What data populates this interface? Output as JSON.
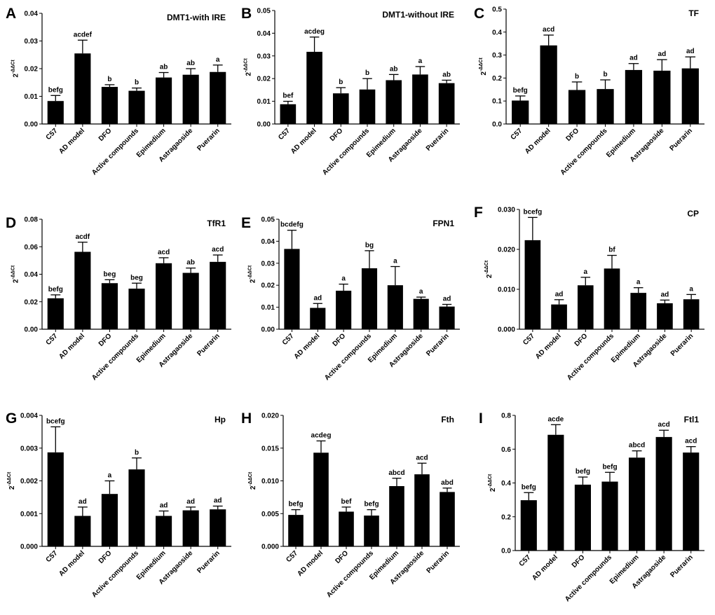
{
  "chart_data": [
    {
      "type": "bar",
      "panel": "A",
      "title": "DMT1-with IRE",
      "ylabel": {
        "base": "2",
        "sup": "-ΔΔCt"
      },
      "ylim": [
        0,
        0.04
      ],
      "yticks": [
        "0.00",
        "0.01",
        "0.02",
        "0.03",
        "0.04"
      ],
      "categories": [
        "C57",
        "AD model",
        "DFO",
        "Active compounds",
        "Epimedium",
        "Astragaoside",
        "Puerarin"
      ],
      "values": [
        0.0083,
        0.0255,
        0.0134,
        0.012,
        0.0168,
        0.0178,
        0.0188
      ],
      "errors": [
        0.002,
        0.0048,
        0.0008,
        0.001,
        0.0018,
        0.0022,
        0.0025
      ],
      "significance": [
        "befg",
        "acdef",
        "b",
        "b",
        "ab",
        "ab",
        "a"
      ]
    },
    {
      "type": "bar",
      "panel": "B",
      "title": "DMT1-without IRE",
      "ylabel": {
        "base": "2",
        "sup": "-ΔΔCt"
      },
      "ylim": [
        0,
        0.05
      ],
      "yticks": [
        "0.00",
        "0.01",
        "0.02",
        "0.03",
        "0.04",
        "0.05"
      ],
      "categories": [
        "C57",
        "AD model",
        "DFO",
        "Active compounds",
        "Epimedium",
        "Astragaoside",
        "Puerarin"
      ],
      "values": [
        0.0087,
        0.0318,
        0.0135,
        0.0152,
        0.0193,
        0.0218,
        0.018
      ],
      "errors": [
        0.0013,
        0.0065,
        0.0025,
        0.0048,
        0.0025,
        0.0035,
        0.0013
      ],
      "significance": [
        "bef",
        "acdeg",
        "b",
        "b",
        "ab",
        "a",
        "ab"
      ]
    },
    {
      "type": "bar",
      "panel": "C",
      "title": "TF",
      "ylabel": {
        "base": "2",
        "sup": "-ΔΔCt"
      },
      "ylim": [
        0,
        0.5
      ],
      "yticks": [
        "0.0",
        "0.1",
        "0.2",
        "0.3",
        "0.4",
        "0.5"
      ],
      "categories": [
        "C57",
        "AD model",
        "DFO",
        "Active compounds",
        "Epimedium",
        "Astragaoside",
        "Puerarin"
      ],
      "values": [
        0.102,
        0.342,
        0.148,
        0.152,
        0.235,
        0.232,
        0.242
      ],
      "errors": [
        0.02,
        0.045,
        0.035,
        0.04,
        0.028,
        0.048,
        0.05
      ],
      "significance": [
        "befg",
        "acd",
        "b",
        "b",
        "ad",
        "ad",
        "ad"
      ]
    },
    {
      "type": "bar",
      "panel": "D",
      "title": "TfR1",
      "ylabel": {
        "base": "2",
        "sup": "-ΔΔCt"
      },
      "ylim": [
        0,
        0.08
      ],
      "yticks": [
        "0.00",
        "0.02",
        "0.04",
        "0.06",
        "0.08"
      ],
      "categories": [
        "C57",
        "AD model",
        "DFO",
        "Active compounds",
        "Epimedium",
        "Astragaoside",
        "Puerarin"
      ],
      "values": [
        0.0225,
        0.0563,
        0.0335,
        0.0295,
        0.048,
        0.041,
        0.049
      ],
      "errors": [
        0.0025,
        0.007,
        0.0025,
        0.004,
        0.004,
        0.0035,
        0.005
      ],
      "significance": [
        "befg",
        "acdf",
        "beg",
        "beg",
        "acd",
        "ab",
        "acd"
      ]
    },
    {
      "type": "bar",
      "panel": "E",
      "title": "FPN1",
      "ylabel": {
        "base": "2",
        "sup": "-ΔΔCt"
      },
      "ylim": [
        0,
        0.05
      ],
      "yticks": [
        "0.00",
        "0.01",
        "0.02",
        "0.03",
        "0.04",
        "0.05"
      ],
      "categories": [
        "C57",
        "AD model",
        "DFO",
        "Active compounds",
        "Epimedium",
        "Astragaoside",
        "Puerarin"
      ],
      "values": [
        0.0365,
        0.0097,
        0.0175,
        0.0277,
        0.02,
        0.0138,
        0.0103
      ],
      "errors": [
        0.0085,
        0.002,
        0.003,
        0.008,
        0.0085,
        0.0008,
        0.001
      ],
      "significance": [
        "bcdefg",
        "ad",
        "a",
        "bg",
        "a",
        "a",
        "ad"
      ]
    },
    {
      "type": "bar",
      "panel": "F",
      "title": "CP",
      "ylabel": {
        "base": "2",
        "sup": "-ΔΔCt"
      },
      "ylim": [
        0,
        0.03
      ],
      "yticks": [
        "0.000",
        "0.010",
        "0.020",
        "0.030"
      ],
      "categories": [
        "C57",
        "AD model",
        "DFO",
        "Active compounds",
        "Epimedium",
        "Astragaoside",
        "Puerarin"
      ],
      "values": [
        0.0223,
        0.0062,
        0.011,
        0.0152,
        0.0091,
        0.0065,
        0.0075
      ],
      "errors": [
        0.0057,
        0.0012,
        0.002,
        0.0033,
        0.0013,
        0.0008,
        0.0012
      ],
      "significance": [
        "bcefg",
        "ad",
        "a",
        "bf",
        "a",
        "ad",
        "a"
      ]
    },
    {
      "type": "bar",
      "panel": "G",
      "title": "Hp",
      "ylabel": {
        "base": "2",
        "sup": "-ΔΔCt"
      },
      "ylim": [
        0,
        0.004
      ],
      "yticks": [
        "0.000",
        "0.001",
        "0.002",
        "0.003",
        "0.004"
      ],
      "categories": [
        "C57",
        "AD model",
        "DFO",
        "Active compounds",
        "Epimedium",
        "Astragaoside",
        "Puerarin"
      ],
      "values": [
        0.00287,
        0.00093,
        0.0016,
        0.00235,
        0.00093,
        0.0011,
        0.00113
      ],
      "errors": [
        0.00078,
        0.00027,
        0.0004,
        0.00035,
        0.00015,
        0.0001,
        0.0001
      ],
      "significance": [
        "bcefg",
        "ad",
        "a",
        "b",
        "ad",
        "ad",
        "ad"
      ]
    },
    {
      "type": "bar",
      "panel": "H",
      "title": "Fth",
      "ylabel": {
        "base": "2",
        "sup": "-ΔΔCt"
      },
      "ylim": [
        0,
        0.02
      ],
      "yticks": [
        "0.000",
        "0.005",
        "0.010",
        "0.015",
        "0.020"
      ],
      "categories": [
        "C57",
        "AD model",
        "DFO",
        "Active compounds",
        "Epimedium",
        "Astragaoside",
        "Puerarin"
      ],
      "values": [
        0.0048,
        0.0143,
        0.0053,
        0.0047,
        0.0092,
        0.011,
        0.0083
      ],
      "errors": [
        0.0008,
        0.0018,
        0.0007,
        0.0009,
        0.0012,
        0.0017,
        0.0006
      ],
      "significance": [
        "befg",
        "acdeg",
        "bef",
        "befg",
        "abcd",
        "acd",
        "abd"
      ]
    },
    {
      "type": "bar",
      "panel": "I",
      "title": "Ftl1",
      "ylabel": {
        "base": "2",
        "sup": "-ΔΔCt"
      },
      "ylim": [
        0,
        0.8
      ],
      "yticks": [
        "0.0",
        "0.2",
        "0.4",
        "0.6",
        "0.8"
      ],
      "categories": [
        "C57",
        "AD model",
        "DFO",
        "Active compounds",
        "Epimedium",
        "Astragaoside",
        "Puerarin"
      ],
      "values": [
        0.298,
        0.685,
        0.39,
        0.408,
        0.55,
        0.672,
        0.58
      ],
      "errors": [
        0.045,
        0.06,
        0.045,
        0.055,
        0.04,
        0.04,
        0.035
      ],
      "significance": [
        "befg",
        "acde",
        "befg",
        "befg",
        "abcd",
        "acd",
        "acd"
      ]
    }
  ]
}
